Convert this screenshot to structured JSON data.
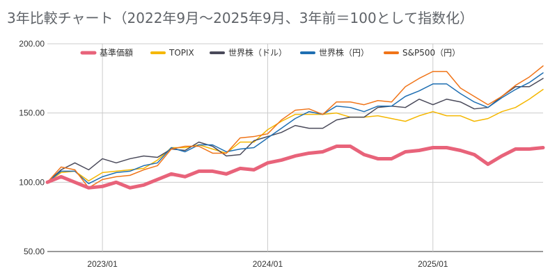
{
  "chart_data": {
    "type": "line",
    "title": "3年比較チャート（2022年9月〜2025年9月、3年前＝100として指数化）",
    "xlabel": "",
    "ylabel": "",
    "ylim": [
      50,
      200
    ],
    "yticks": [
      "50.00",
      "100.00",
      "150.00",
      "200.00"
    ],
    "xticks": [
      {
        "label": "2023/01",
        "index": 4
      },
      {
        "label": "2024/01",
        "index": 16
      },
      {
        "label": "2025/01",
        "index": 28
      }
    ],
    "grid": true,
    "legend_position": "top",
    "series": [
      {
        "name": "基準価額",
        "color": "#e8637a",
        "width": 5,
        "values": [
          100.0,
          104.0,
          100.0,
          96.0,
          97.0,
          100.0,
          96.0,
          98.0,
          102.0,
          106.0,
          104.0,
          108.0,
          108.0,
          106.0,
          110.0,
          109.0,
          114.0,
          116.0,
          119.0,
          121.0,
          122.0,
          126.0,
          126.0,
          120.0,
          117.0,
          117.0,
          122.0,
          123.0,
          125.0,
          125.0,
          123.0,
          120.0,
          113.0,
          119.0,
          124.0,
          124.0,
          125.0
        ]
      },
      {
        "name": "TOPIX",
        "color": "#f5b700",
        "width": 1.5,
        "values": [
          100.0,
          107.0,
          108.0,
          101.0,
          107.0,
          108.0,
          109.0,
          110.0,
          116.0,
          125.0,
          125.0,
          127.0,
          124.0,
          121.0,
          129.0,
          129.0,
          138.0,
          144.0,
          149.0,
          149.0,
          149.0,
          150.0,
          147.0,
          147.0,
          148.0,
          146.0,
          144.0,
          148.0,
          151.0,
          148.0,
          148.0,
          144.0,
          146.0,
          151.0,
          154.0,
          160.0,
          167.0
        ]
      },
      {
        "name": "世界株（ドル）",
        "color": "#4a4a5a",
        "width": 1.5,
        "values": [
          100.0,
          109.0,
          114.0,
          109.0,
          117.0,
          114.0,
          117.0,
          119.0,
          118.0,
          124.0,
          123.0,
          129.0,
          126.0,
          119.0,
          120.0,
          130.0,
          133.0,
          136.0,
          141.0,
          139.0,
          139.0,
          145.0,
          147.0,
          147.0,
          154.0,
          155.0,
          154.0,
          160.0,
          156.0,
          160.0,
          158.0,
          153.0,
          154.0,
          162.0,
          169.0,
          169.0,
          175.0
        ]
      },
      {
        "name": "世界株（円）",
        "color": "#1f6fb2",
        "width": 1.5,
        "values": [
          100.0,
          108.0,
          108.0,
          99.0,
          104.0,
          107.0,
          108.0,
          112.0,
          114.0,
          125.0,
          122.0,
          127.0,
          127.0,
          122.0,
          124.0,
          125.0,
          132.0,
          139.0,
          146.0,
          151.0,
          149.0,
          155.0,
          154.0,
          151.0,
          155.0,
          155.0,
          162.0,
          166.0,
          171.0,
          171.0,
          164.0,
          158.0,
          154.0,
          161.0,
          167.0,
          172.0,
          179.0
        ]
      },
      {
        "name": "S&P500（円）",
        "color": "#f07418",
        "width": 1.5,
        "values": [
          100.0,
          111.0,
          109.0,
          96.0,
          102.0,
          104.0,
          105.0,
          109.0,
          112.0,
          124.0,
          126.0,
          126.0,
          121.0,
          121.0,
          132.0,
          133.0,
          135.0,
          145.0,
          152.0,
          153.0,
          149.0,
          158.0,
          158.0,
          156.0,
          159.0,
          158.0,
          169.0,
          175.0,
          180.0,
          180.0,
          168.0,
          162.0,
          156.0,
          162.0,
          170.0,
          176.0,
          184.0
        ]
      }
    ]
  }
}
